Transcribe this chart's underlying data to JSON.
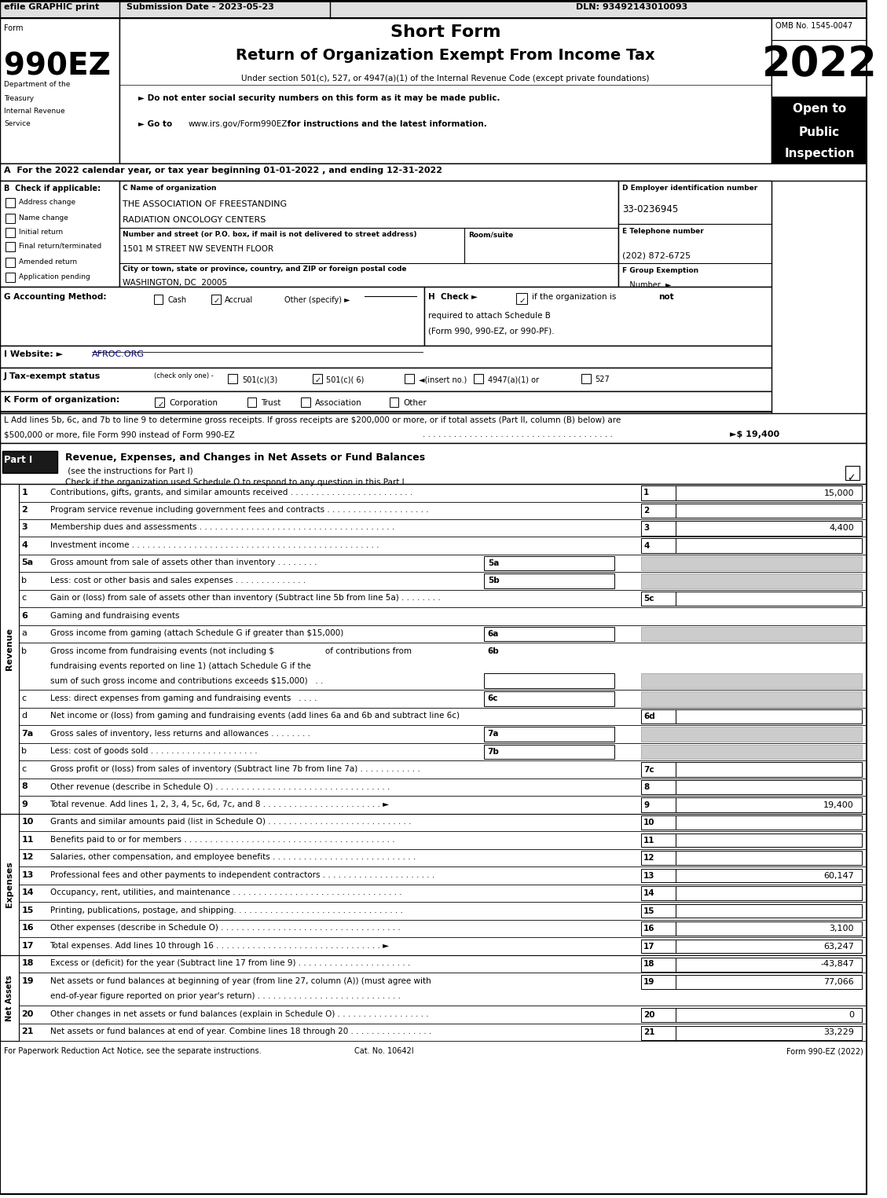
{
  "title_bar_text": "efile GRAPHIC print     Submission Date - 2023-05-23                                                    DLN: 93492143010093",
  "form_name": "990EZ",
  "short_form_title": "Short Form",
  "return_title": "Return of Organization Exempt From Income Tax",
  "under_section": "Under section 501(c), 527, or 4947(a)(1) of the Internal Revenue Code (except private foundations)",
  "bullet1": "► Do not enter social security numbers on this form as it may be made public.",
  "bullet2": "► Go to www.irs.gov/Form990EZ for instructions and the latest information.",
  "year": "2022",
  "open_to": "Open to\nPublic\nInspection",
  "omb": "OMB No. 1545-0047",
  "dept1": "Department of the",
  "dept2": "Treasury",
  "dept3": "Internal Revenue",
  "dept4": "Service",
  "section_a": "A  For the 2022 calendar year, or tax year beginning 01-01-2022 , and ending 12-31-2022",
  "check_b": "B  Check if applicable:",
  "checkboxes_b": [
    "Address change",
    "Name change",
    "Initial return",
    "Final return/terminated",
    "Amended return",
    "Application pending"
  ],
  "label_c": "C Name of organization",
  "org_name": "THE ASSOCIATION OF FREESTANDING\nRADIATION ONCOLOGY CENTERS",
  "label_street": "Number and street (or P.O. box, if mail is not delivered to street address)",
  "room_suite": "Room/suite",
  "street_addr": "1501 M STREET NW SEVENTH FLOOR",
  "label_city": "City or town, state or province, country, and ZIP or foreign postal code",
  "city_addr": "WASHINGTON, DC  20005",
  "label_d": "D Employer identification number",
  "ein": "33-0236945",
  "label_e": "E Telephone number",
  "phone": "(202) 872-6725",
  "label_f": "F Group Exemption\n   Number  ►",
  "label_g": "G Accounting Method:",
  "g_cash": "Cash",
  "g_accrual": "Accrual",
  "g_other": "Other (specify) ►",
  "label_h": "H  Check ►",
  "h_text": "if the organization is not\nrequired to attach Schedule B\n(Form 990, 990-EZ, or 990-PF).",
  "label_i": "I Website: ►AFROC.ORG",
  "label_j": "J Tax-exempt status",
  "j_small": "(check only one) -",
  "j_options": [
    "501(c)(3)",
    "501(c)( 6)",
    "(insert no.)",
    "4947(a)(1) or",
    "527"
  ],
  "label_k": "K Form of organization:",
  "k_options": [
    "Corporation",
    "Trust",
    "Association",
    "Other"
  ],
  "label_l": "L Add lines 5b, 6c, and 7b to line 9 to determine gross receipts. If gross receipts are $200,000 or more, or if total assets (Part II, column (B) below) are\n$500,000 or more, file Form 990 instead of Form 990-EZ",
  "l_amount": "►$ 19,400",
  "part1_title": "Revenue, Expenses, and Changes in Net Assets or Fund Balances",
  "part1_subtitle": "(see the instructions for Part I)",
  "part1_check": "Check if the organization used Schedule O to respond to any question in this Part I",
  "footer_left": "For Paperwork Reduction Act Notice, see the separate instructions.",
  "footer_cat": "Cat. No. 10642I",
  "footer_right": "Form 990-EZ (2022)"
}
